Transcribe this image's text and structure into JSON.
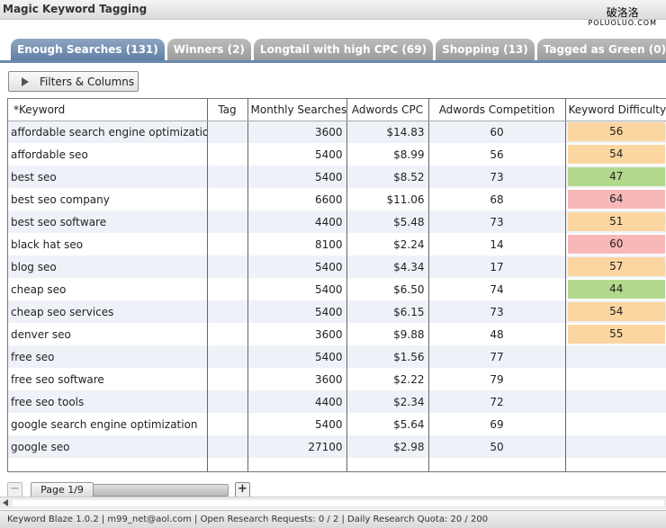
{
  "window": {
    "title": "Magic Keyword Tagging"
  },
  "watermark": {
    "chinese": "破洛洛",
    "latin": "POLUOLUO.COM"
  },
  "tabs": [
    {
      "label": "Enough Searches (131)",
      "active": true
    },
    {
      "label": "Winners (2)",
      "active": false
    },
    {
      "label": "Longtail with high CPC (69)",
      "active": false
    },
    {
      "label": "Shopping (13)",
      "active": false
    },
    {
      "label": "Tagged as Green (0)",
      "active": false
    }
  ],
  "toolbar": {
    "filters_label": "Filters & Columns",
    "filters_icon": "play-icon"
  },
  "table": {
    "columns": [
      "*Keyword",
      "Tag",
      "Monthly Searches",
      "Adwords CPC",
      "Adwords Competition",
      "Keyword Difficulty"
    ],
    "rows": [
      {
        "keyword": "affordable search engine optimization",
        "tag": "",
        "searches": "3600",
        "cpc": "$14.83",
        "competition": "60",
        "difficulty": "56",
        "level": "medium"
      },
      {
        "keyword": "affordable seo",
        "tag": "",
        "searches": "5400",
        "cpc": "$8.99",
        "competition": "56",
        "difficulty": "54",
        "level": "medium"
      },
      {
        "keyword": "best seo",
        "tag": "",
        "searches": "5400",
        "cpc": "$8.52",
        "competition": "73",
        "difficulty": "47",
        "level": "easy"
      },
      {
        "keyword": "best seo company",
        "tag": "",
        "searches": "6600",
        "cpc": "$11.06",
        "competition": "68",
        "difficulty": "64",
        "level": "hard"
      },
      {
        "keyword": "best seo software",
        "tag": "",
        "searches": "4400",
        "cpc": "$5.48",
        "competition": "73",
        "difficulty": "51",
        "level": "medium"
      },
      {
        "keyword": "black hat seo",
        "tag": "",
        "searches": "8100",
        "cpc": "$2.24",
        "competition": "14",
        "difficulty": "60",
        "level": "hard"
      },
      {
        "keyword": "blog seo",
        "tag": "",
        "searches": "5400",
        "cpc": "$4.34",
        "competition": "17",
        "difficulty": "57",
        "level": "medium"
      },
      {
        "keyword": "cheap seo",
        "tag": "",
        "searches": "5400",
        "cpc": "$6.50",
        "competition": "74",
        "difficulty": "44",
        "level": "easy"
      },
      {
        "keyword": "cheap seo services",
        "tag": "",
        "searches": "5400",
        "cpc": "$6.15",
        "competition": "73",
        "difficulty": "54",
        "level": "medium"
      },
      {
        "keyword": "denver seo",
        "tag": "",
        "searches": "3600",
        "cpc": "$9.88",
        "competition": "48",
        "difficulty": "55",
        "level": "medium"
      },
      {
        "keyword": "free seo",
        "tag": "",
        "searches": "5400",
        "cpc": "$1.56",
        "competition": "77",
        "difficulty": "",
        "level": ""
      },
      {
        "keyword": "free seo software",
        "tag": "",
        "searches": "3600",
        "cpc": "$2.22",
        "competition": "79",
        "difficulty": "",
        "level": ""
      },
      {
        "keyword": "free seo tools",
        "tag": "",
        "searches": "4400",
        "cpc": "$2.34",
        "competition": "72",
        "difficulty": "",
        "level": ""
      },
      {
        "keyword": "google search engine optimization",
        "tag": "",
        "searches": "5400",
        "cpc": "$5.64",
        "competition": "69",
        "difficulty": "",
        "level": ""
      },
      {
        "keyword": "google seo",
        "tag": "",
        "searches": "27100",
        "cpc": "$2.98",
        "competition": "50",
        "difficulty": "",
        "level": ""
      }
    ]
  },
  "difficulty_colors": {
    "easy": "#b3d98c",
    "medium": "#fcd6a0",
    "hard": "#f9b8b8"
  },
  "pager": {
    "label": "Page 1/9",
    "minus": "−",
    "plus": "+"
  },
  "statusbar": {
    "text": "Keyword Blaze 1.0.2 | m99_net@aol.com | Open Research Requests: 0 / 2 | Daily Research Quota: 20 / 200"
  }
}
